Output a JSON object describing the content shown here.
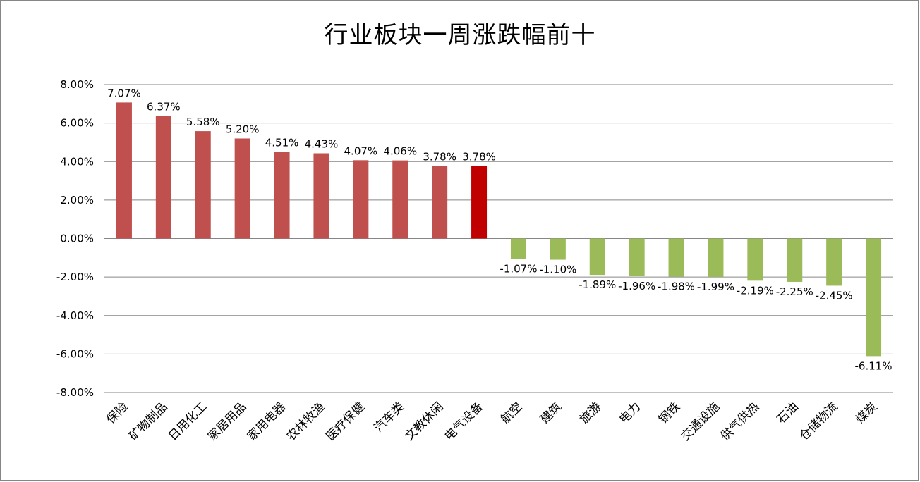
{
  "chart_data": {
    "type": "bar",
    "title": "行业板块一周涨跌幅前十",
    "xlabel": "",
    "ylabel": "",
    "ylim": [
      -8,
      8
    ],
    "y_ticks": [
      "8.00%",
      "6.00%",
      "4.00%",
      "2.00%",
      "0.00%",
      "-2.00%",
      "-4.00%",
      "-6.00%",
      "-8.00%"
    ],
    "y_tick_values": [
      8,
      6,
      4,
      2,
      0,
      -2,
      -4,
      -6,
      -8
    ],
    "grid": true,
    "legend": "none",
    "categories": [
      "保险",
      "矿物制品",
      "日用化工",
      "家居用品",
      "家用电器",
      "农林牧渔",
      "医疗保健",
      "汽车类",
      "文教休闲",
      "电气设备",
      "航空",
      "建筑",
      "旅游",
      "电力",
      "钢铁",
      "交通设施",
      "供气供热",
      "石油",
      "仓储物流",
      "煤炭"
    ],
    "values": [
      7.07,
      6.37,
      5.58,
      5.2,
      4.51,
      4.43,
      4.07,
      4.06,
      3.78,
      3.78,
      -1.07,
      -1.1,
      -1.89,
      -1.96,
      -1.98,
      -1.99,
      -2.19,
      -2.25,
      -2.45,
      -6.11
    ],
    "value_labels": [
      "7.07%",
      "6.37%",
      "5.58%",
      "5.20%",
      "4.51%",
      "4.43%",
      "4.07%",
      "4.06%",
      "3.78%",
      "3.78%",
      "-1.07%",
      "-1.10%",
      "-1.89%",
      "-1.96%",
      "-1.98%",
      "-1.99%",
      "-2.19%",
      "-2.25%",
      "-2.45%",
      "-6.11%"
    ],
    "colors": {
      "positive": "#c0504d",
      "highlight": "#c00000",
      "negative": "#9bbb59",
      "grid": "#868686"
    },
    "highlight_index": 9
  }
}
